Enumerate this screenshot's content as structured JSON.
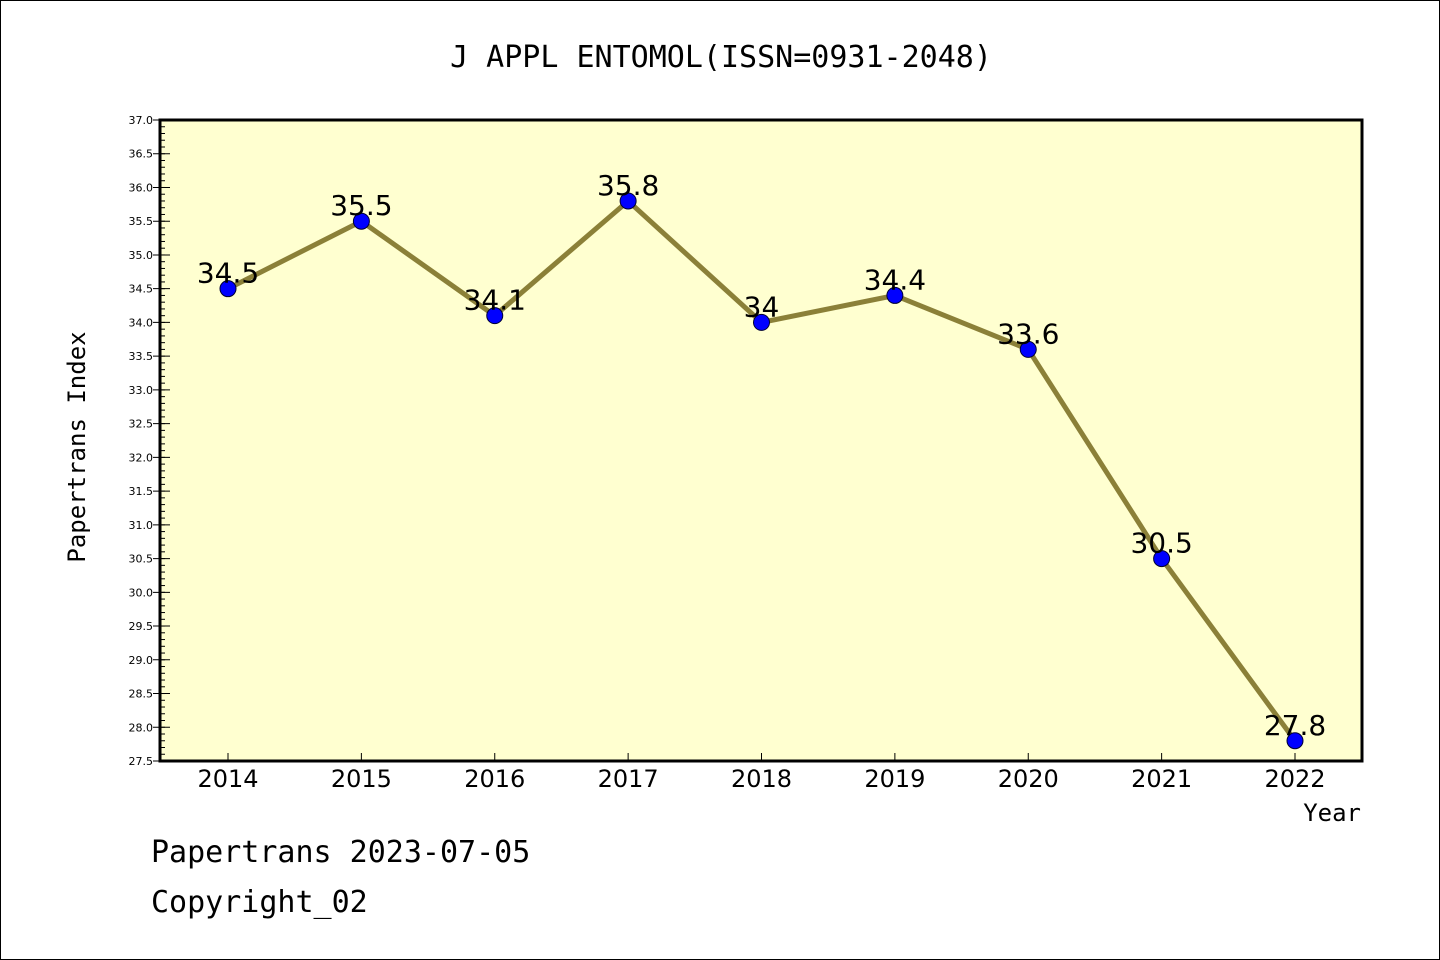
{
  "chart_data": {
    "type": "line",
    "title": "J APPL ENTOMOL(ISSN=0931-2048)",
    "xlabel": "Year",
    "ylabel": "Papertrans Index",
    "categories": [
      "2014",
      "2015",
      "2016",
      "2017",
      "2018",
      "2019",
      "2020",
      "2021",
      "2022"
    ],
    "series": [
      {
        "values": [
          34.5,
          35.5,
          34.1,
          35.8,
          34,
          34.4,
          33.6,
          30.5,
          27.8
        ],
        "labels": [
          "34.5",
          "35.5",
          "34.1",
          "35.8",
          "34",
          "34.4",
          "33.6",
          "30.5",
          "27.8"
        ]
      }
    ],
    "ylim": [
      27.5,
      37.0
    ],
    "yticks": [
      "27.5",
      "28.0",
      "28.5",
      "29.0",
      "29.5",
      "30.0",
      "30.5",
      "31.0",
      "31.5",
      "32.0",
      "32.5",
      "33.0",
      "33.5",
      "34.0",
      "34.5",
      "35.0",
      "35.5",
      "36.0",
      "36.5",
      "37.0"
    ],
    "grid": false,
    "colors": {
      "plot_background": "#ffffd0",
      "line": "#8b8038",
      "marker": "#0000ff"
    }
  },
  "footer": {
    "line1": "Papertrans 2023-07-05",
    "line2": "Copyright_02"
  }
}
